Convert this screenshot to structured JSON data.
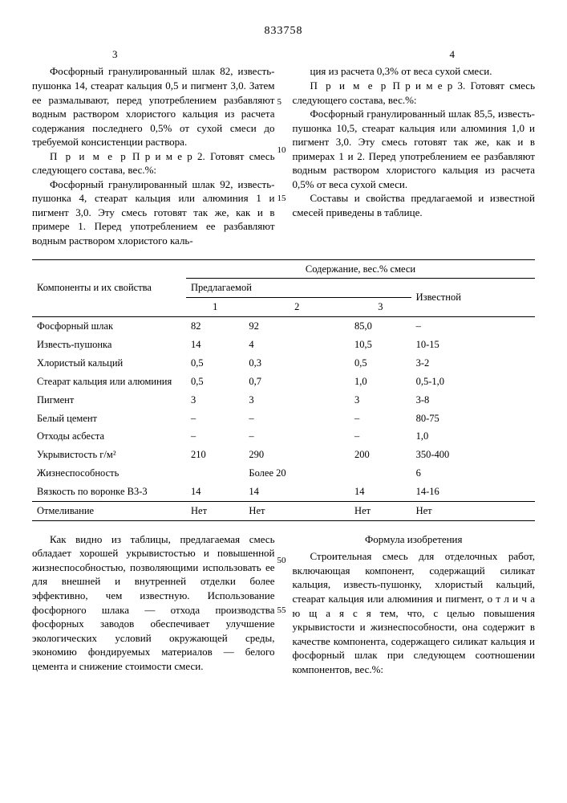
{
  "patent_number": "833758",
  "page_left": "3",
  "page_right": "4",
  "line_marks": [
    "5",
    "10",
    "15"
  ],
  "line_marks_lower": [
    "50",
    "55"
  ],
  "col_left_paras": [
    "Фосфорный гранулированный шлак 82, известь-пушонка 14, стеарат кальция 0,5 и пигмент 3,0. Затем ее размалывают, перед употреблением разбавляют водным раствором хлористого кальция из расчета содержания последнего 0,5% от сухой смеси до требуемой консистенции раствора.",
    "П р и м е р 2. Готовят смесь следующего состава, вес.%:",
    "Фосфорный гранулированный шлак 92, известь-пушонка 4, стеарат кальция или алюминия 1 и пигмент 3,0. Эту смесь готовят так же, как и в примере 1. Перед употреблением ее разбавляют водным раствором хлористого каль-"
  ],
  "col_right_paras": [
    "ция из расчета 0,3% от веса сухой смеси.",
    "П р и м е р 3. Готовят смесь следующего состава, вес.%:",
    "Фосфорный гранулированный шлак 85,5, известь-пушонка 10,5, стеарат кальция или алюминия 1,0 и пигмент 3,0. Эту смесь готовят так же, как и в примерах 1 и 2. Перед употреблением ее разбавляют водным раствором хлористого кальция из расчета 0,5% от веса сухой смеси.",
    "Составы и свойства предлагаемой и известной смесей приведены в таблице."
  ],
  "table": {
    "head_group": "Содержание, вес.% смеси",
    "head_left": "Компоненты и их свойства",
    "head_proposed": "Предлагаемой",
    "head_known": "Известной",
    "sub_cols": [
      "1",
      "2",
      "3"
    ],
    "rows": [
      [
        "Фосфорный шлак",
        "82",
        "92",
        "85,0",
        "–"
      ],
      [
        "Известь-пушонка",
        "14",
        "4",
        "10,5",
        "10-15"
      ],
      [
        "Хлористый кальций",
        "0,5",
        "0,3",
        "0,5",
        "3-2"
      ],
      [
        "Стеарат кальция или алюминия",
        "0,5",
        "0,7",
        "1,0",
        "0,5-1,0"
      ],
      [
        "Пигмент",
        "3",
        "3",
        "3",
        "3-8"
      ],
      [
        "Белый цемент",
        "–",
        "–",
        "–",
        "80-75"
      ],
      [
        "Отходы асбеста",
        "–",
        "–",
        "–",
        "1,0"
      ],
      [
        "Укрывистость г/м²",
        "210",
        "290",
        "200",
        "350-400"
      ],
      [
        "Жизнеспособность",
        "",
        "Более 20",
        "",
        "6"
      ],
      [
        "Вязкость по воронке В3-3",
        "14",
        "14",
        "14",
        "14-16"
      ],
      [
        "Отмеливание",
        "Нет",
        "Нет",
        "Нет",
        "Нет"
      ]
    ]
  },
  "bottom_left_paras": [
    "Как видно из таблицы, предлагаемая смесь обладает хорошей укрывистостью и повышенной жизнеспособностью, позволяющими использовать ее для внешней и внутренней отделки более эффективно, чем известную. Использование фосфорного шлака — отхода производства фосфорных заводов обеспечивает улучшение экологических условий окружающей среды, экономию фондируемых материалов — белого цемента и снижение стоимости смеси."
  ],
  "formula_title": "Формула изобретения",
  "bottom_right_paras": [
    "Строительная смесь для отделочных работ, включающая компонент, содержащий силикат кальция, известь-пушонку, хлористый кальций, стеарат кальция или алюминия и пигмент, о т л и ч а ю щ а я с я тем, что, с целью повышения укрывистости и жизнеспособности, она содержит в качестве компонента, содержащего силикат кальция и фосфорный шлак при следующем соотношении компонентов, вес.%:"
  ]
}
